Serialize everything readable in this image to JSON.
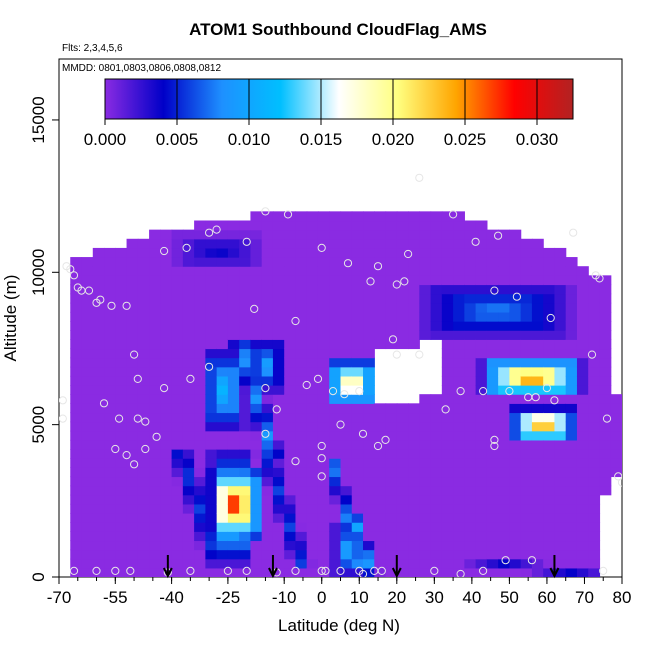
{
  "chart_data": {
    "type": "heatmap",
    "title": "ATOM1 Southbound CloudFlag_AMS",
    "subtitle_flights": "Flts: 2,3,4,5,6",
    "subtitle_dates": "MMDD: 0801,0803,0806,0808,0812",
    "xlabel": "Latitude (deg N)",
    "ylabel": "Altitude (m)",
    "xlim": [
      -70,
      80
    ],
    "ylim": [
      0,
      17000
    ],
    "x_ticks": [
      "-70",
      "-55",
      "-40",
      "-25",
      "-10",
      "0",
      "10",
      "20",
      "30",
      "40",
      "50",
      "60",
      "70",
      "80"
    ],
    "y_ticks": [
      "0",
      "5000",
      "10000",
      "15000"
    ],
    "colorbar": {
      "min": 0.0,
      "max": 0.0325,
      "ticks": [
        "0.000",
        "0.005",
        "0.010",
        "0.015",
        "0.020",
        "0.025",
        "0.030"
      ],
      "colors": [
        "#8a2be2",
        "#0000c8",
        "#1e90ff",
        "#00bfff",
        "#ffffff",
        "#ffff80",
        "#ffa500",
        "#ff0000",
        "#b22222"
      ]
    },
    "background_value": 0.0,
    "cloud_patches": [
      {
        "lat": [
          -30,
          -16
        ],
        "alt": [
          1200,
          3600
        ],
        "peak": 0.03
      },
      {
        "lat": [
          -30,
          -18
        ],
        "alt": [
          300,
          4300
        ],
        "peak": 0.015
      },
      {
        "lat": [
          -32,
          -20
        ],
        "alt": [
          4700,
          7600
        ],
        "peak": 0.012
      },
      {
        "lat": [
          -20,
          -10
        ],
        "alt": [
          6000,
          7900
        ],
        "peak": 0.01
      },
      {
        "lat": [
          1,
          15
        ],
        "alt": [
          5600,
          7200
        ],
        "peak": 0.022
      },
      {
        "lat": [
          3,
          12
        ],
        "alt": [
          0,
          1800
        ],
        "peak": 0.011
      },
      {
        "lat": [
          42,
          70
        ],
        "alt": [
          5900,
          7200
        ],
        "peak": 0.027
      },
      {
        "lat": [
          50,
          68
        ],
        "alt": [
          4400,
          5600
        ],
        "peak": 0.026
      },
      {
        "lat": [
          25,
          68
        ],
        "alt": [
          7800,
          9700
        ],
        "peak": 0.008
      },
      {
        "lat": [
          -40,
          -15
        ],
        "alt": [
          10100,
          11300
        ],
        "peak": 0.004
      }
    ],
    "dive_markers_lat": [
      -41,
      -13,
      20,
      62
    ],
    "sample_points": [
      {
        "lat": -68,
        "alt": 10200
      },
      {
        "lat": -67,
        "alt": 10100
      },
      {
        "lat": -66,
        "alt": 9900
      },
      {
        "lat": -65,
        "alt": 9500
      },
      {
        "lat": -64,
        "alt": 9400
      },
      {
        "lat": -62,
        "alt": 9400
      },
      {
        "lat": -60,
        "alt": 9000
      },
      {
        "lat": -59,
        "alt": 9100
      },
      {
        "lat": -56,
        "alt": 8900
      },
      {
        "lat": -52,
        "alt": 8900
      },
      {
        "lat": -50,
        "alt": 7300
      },
      {
        "lat": -49,
        "alt": 6500
      },
      {
        "lat": -69,
        "alt": 5800
      },
      {
        "lat": -69,
        "alt": 5200
      },
      {
        "lat": -58,
        "alt": 5700
      },
      {
        "lat": -54,
        "alt": 5200
      },
      {
        "lat": -49,
        "alt": 5200
      },
      {
        "lat": -47,
        "alt": 5100
      },
      {
        "lat": -55,
        "alt": 4200
      },
      {
        "lat": -52,
        "alt": 4000
      },
      {
        "lat": -50,
        "alt": 3700
      },
      {
        "lat": -47,
        "alt": 4200
      },
      {
        "lat": -44,
        "alt": 4600
      },
      {
        "lat": -42,
        "alt": 6200
      },
      {
        "lat": -35,
        "alt": 6500
      },
      {
        "lat": -30,
        "alt": 6900
      },
      {
        "lat": -42,
        "alt": 10700
      },
      {
        "lat": -36,
        "alt": 10800
      },
      {
        "lat": -30,
        "alt": 11300
      },
      {
        "lat": -28,
        "alt": 11400
      },
      {
        "lat": -20,
        "alt": 11000
      },
      {
        "lat": -15,
        "alt": 12000
      },
      {
        "lat": -9,
        "alt": 11900
      },
      {
        "lat": -18,
        "alt": 8800
      },
      {
        "lat": -7,
        "alt": 8400
      },
      {
        "lat": -4,
        "alt": 6300
      },
      {
        "lat": -1,
        "alt": 6500
      },
      {
        "lat": 3,
        "alt": 6100
      },
      {
        "lat": 6,
        "alt": 6000
      },
      {
        "lat": 10,
        "alt": 6100
      },
      {
        "lat": -15,
        "alt": 6200
      },
      {
        "lat": -12,
        "alt": 5500
      },
      {
        "lat": -7,
        "alt": 3800
      },
      {
        "lat": -15,
        "alt": 4700
      },
      {
        "lat": 0,
        "alt": 4300
      },
      {
        "lat": 0,
        "alt": 3900
      },
      {
        "lat": 0,
        "alt": 3300
      },
      {
        "lat": 5,
        "alt": 5000
      },
      {
        "lat": 11,
        "alt": 4700
      },
      {
        "lat": 15,
        "alt": 4300
      },
      {
        "lat": 17,
        "alt": 4500
      },
      {
        "lat": 20,
        "alt": 7300
      },
      {
        "lat": 26,
        "alt": 7300
      },
      {
        "lat": 19,
        "alt": 7800
      },
      {
        "lat": 0,
        "alt": 10800
      },
      {
        "lat": 7,
        "alt": 10300
      },
      {
        "lat": 13,
        "alt": 9700
      },
      {
        "lat": 15,
        "alt": 10200
      },
      {
        "lat": 20,
        "alt": 9600
      },
      {
        "lat": 22,
        "alt": 9700
      },
      {
        "lat": 23,
        "alt": 10600
      },
      {
        "lat": 26,
        "alt": 13100
      },
      {
        "lat": 35,
        "alt": 11900
      },
      {
        "lat": 41,
        "alt": 11000
      },
      {
        "lat": 47,
        "alt": 11200
      },
      {
        "lat": 46,
        "alt": 9400
      },
      {
        "lat": 52,
        "alt": 9200
      },
      {
        "lat": 61,
        "alt": 8500
      },
      {
        "lat": 67,
        "alt": 11300
      },
      {
        "lat": 73,
        "alt": 9900
      },
      {
        "lat": 74,
        "alt": 9800
      },
      {
        "lat": 33,
        "alt": 5500
      },
      {
        "lat": 37,
        "alt": 6100
      },
      {
        "lat": 43,
        "alt": 6100
      },
      {
        "lat": 50,
        "alt": 6100
      },
      {
        "lat": 55,
        "alt": 5900
      },
      {
        "lat": 57,
        "alt": 5900
      },
      {
        "lat": 60,
        "alt": 6200
      },
      {
        "lat": 62,
        "alt": 5800
      },
      {
        "lat": 46,
        "alt": 4500
      },
      {
        "lat": 46,
        "alt": 4300
      },
      {
        "lat": 72,
        "alt": 7300
      },
      {
        "lat": 76,
        "alt": 5200
      },
      {
        "lat": 79,
        "alt": 3300
      },
      {
        "lat": 80,
        "alt": 3100
      },
      {
        "lat": -66,
        "alt": 200
      },
      {
        "lat": -60,
        "alt": 200
      },
      {
        "lat": -55,
        "alt": 200
      },
      {
        "lat": -51,
        "alt": 200
      },
      {
        "lat": -41,
        "alt": 150
      },
      {
        "lat": -35,
        "alt": 200
      },
      {
        "lat": -25,
        "alt": 200
      },
      {
        "lat": -20,
        "alt": 200
      },
      {
        "lat": -12,
        "alt": 150
      },
      {
        "lat": -7,
        "alt": 200
      },
      {
        "lat": 0,
        "alt": 200
      },
      {
        "lat": 1,
        "alt": 200
      },
      {
        "lat": 5,
        "alt": 200
      },
      {
        "lat": 10,
        "alt": 200
      },
      {
        "lat": 11,
        "alt": 100
      },
      {
        "lat": 14,
        "alt": 200
      },
      {
        "lat": 16,
        "alt": 200
      },
      {
        "lat": 30,
        "alt": 200
      },
      {
        "lat": 37,
        "alt": 100
      },
      {
        "lat": 43,
        "alt": 200
      },
      {
        "lat": 49,
        "alt": 550
      },
      {
        "lat": 56,
        "alt": 550
      },
      {
        "lat": 75,
        "alt": 200
      }
    ]
  }
}
